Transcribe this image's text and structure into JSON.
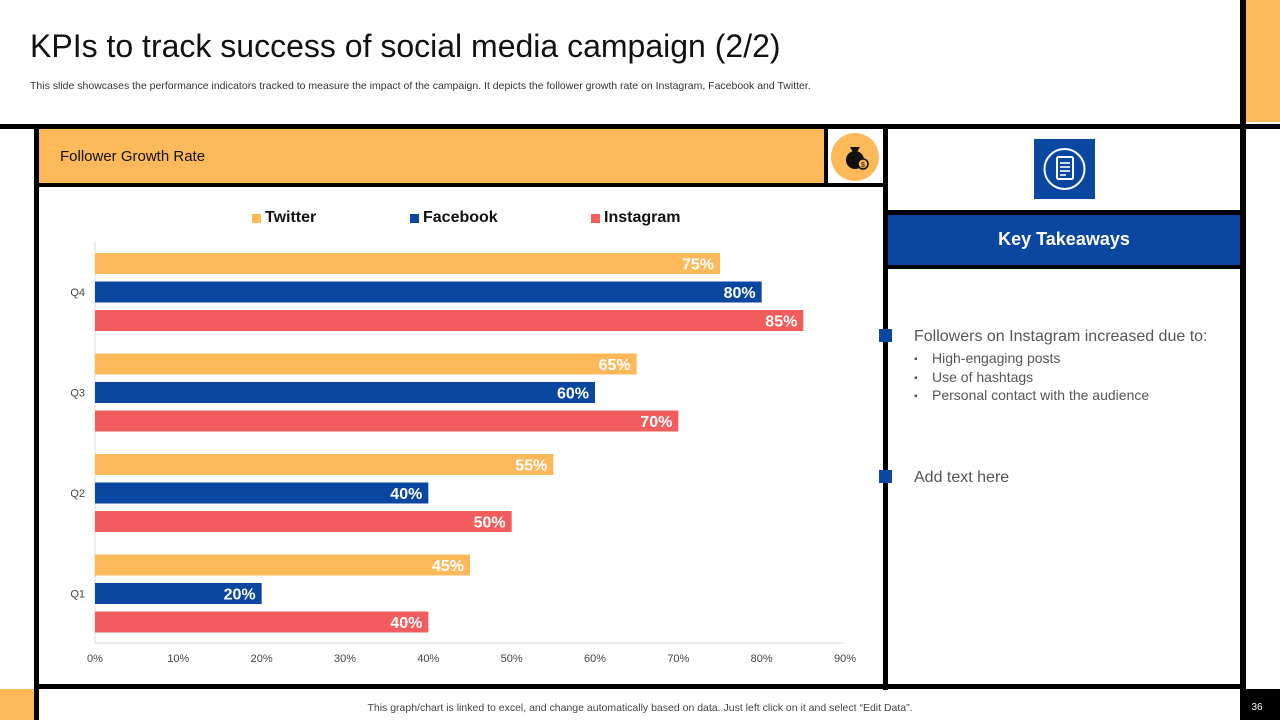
{
  "slide": {
    "title": "KPIs to track success of social media campaign (2/2)",
    "subtitle": "This slide showcases the performance indicators tracked to measure the impact of the campaign. It depicts the follower growth rate on Instagram, Facebook and Twitter.",
    "footer_note": "This graph/chart is linked to excel,  and change automatically based on data. Just left click on it and select “Edit Data”.",
    "page_number": "36"
  },
  "chart_panel": {
    "header": "Follower Growth Rate",
    "icon": "money-bag-icon"
  },
  "colors": {
    "Twitter": "#FDB85A",
    "Facebook": "#0A47A0",
    "Instagram": "#F25C5C",
    "frame": "#000000",
    "accent": "#FDB85A"
  },
  "chart_data": {
    "type": "bar",
    "orientation": "horizontal",
    "categories": [
      "Q4",
      "Q3",
      "Q2",
      "Q1"
    ],
    "series": [
      {
        "name": "Twitter",
        "values": [
          75,
          65,
          55,
          45
        ],
        "labels": [
          "75%",
          "65%",
          "55%",
          "45%"
        ]
      },
      {
        "name": "Facebook",
        "values": [
          80,
          60,
          40,
          20
        ],
        "labels": [
          "80%",
          "60%",
          "40%",
          "20%"
        ]
      },
      {
        "name": "Instagram",
        "values": [
          85,
          70,
          50,
          40
        ],
        "labels": [
          "85%",
          "70%",
          "50%",
          "40%"
        ]
      }
    ],
    "xlim": [
      0,
      90
    ],
    "xticks": [
      "0%",
      "10%",
      "20%",
      "30%",
      "40%",
      "50%",
      "60%",
      "70%",
      "80%",
      "90%"
    ],
    "xtick_values": [
      0,
      10,
      20,
      30,
      40,
      50,
      60,
      70,
      80,
      90
    ],
    "legend_position": "top",
    "grid": false
  },
  "takeaways": {
    "icon": "document-icon",
    "title": "Key Takeaways",
    "points": [
      {
        "text": "Followers on Instagram increased due to:",
        "sub": [
          "High-engaging posts",
          "Use of hashtags",
          "Personal contact with the audience"
        ]
      },
      {
        "text": "Add text here",
        "sub": []
      }
    ]
  }
}
